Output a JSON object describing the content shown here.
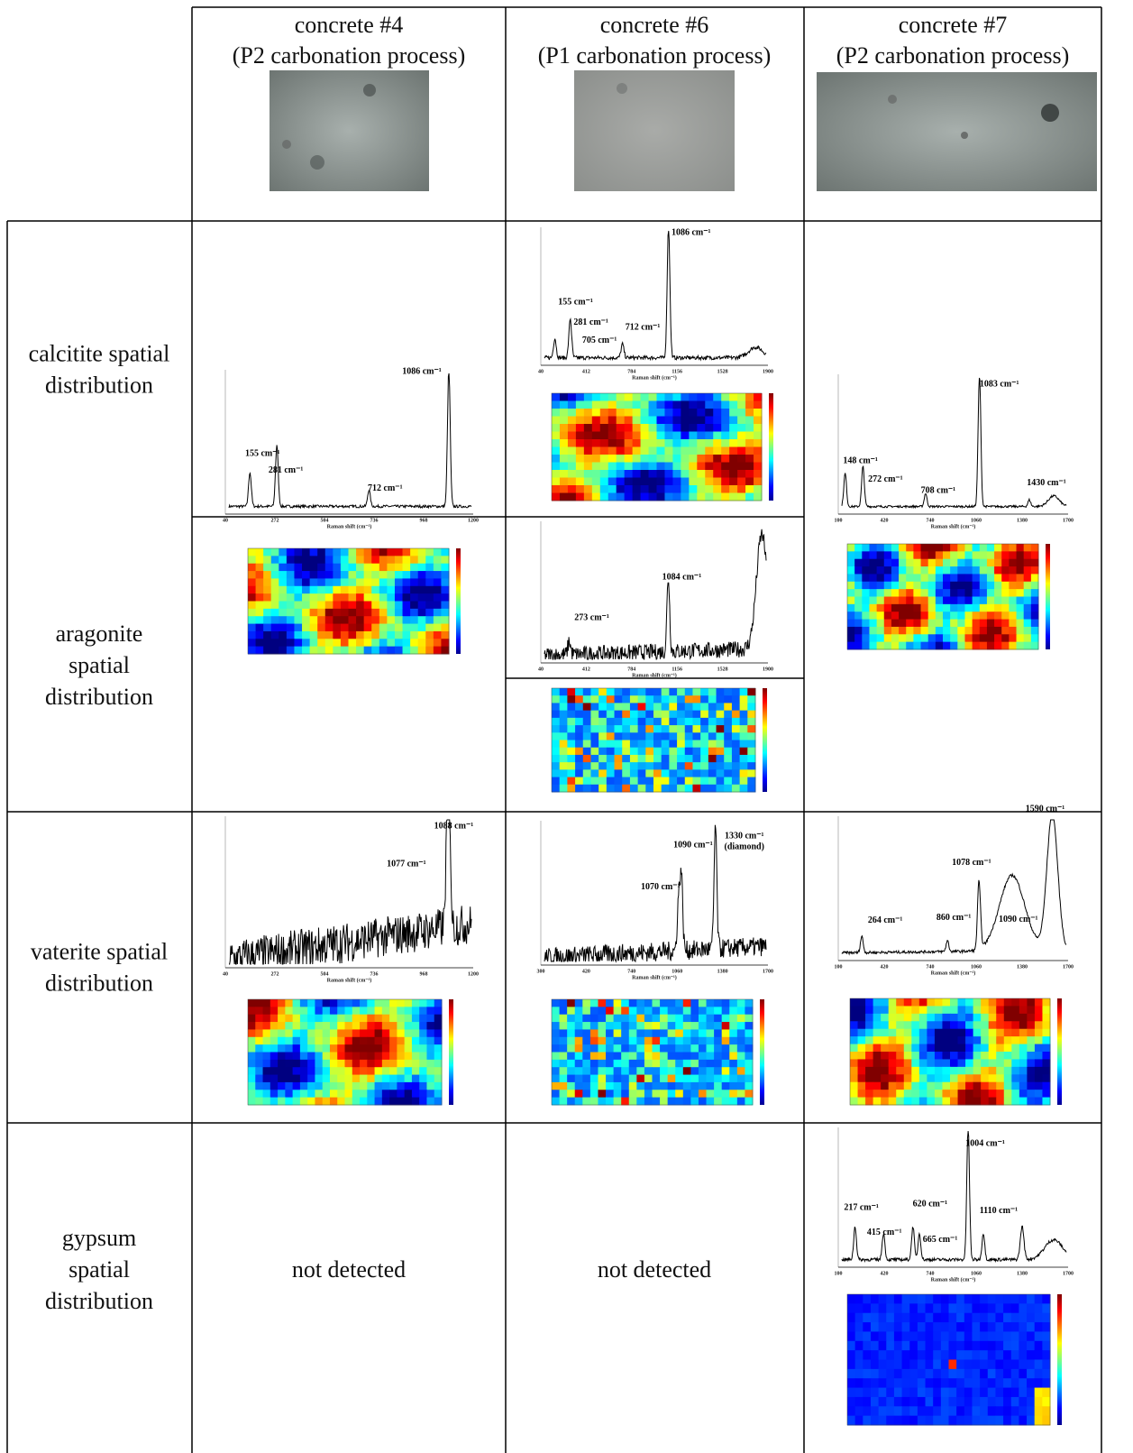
{
  "header": {
    "columns": [
      {
        "sample": "concrete #4",
        "process": "(P2 carbonation process)"
      },
      {
        "sample": "concrete #6",
        "process": "(P1 carbonation process)"
      },
      {
        "sample": "concrete #7",
        "process": "(P2 carbonation process)"
      }
    ]
  },
  "rows": [
    {
      "label_lines": [
        "calcitite spatial",
        "distribution"
      ]
    },
    {
      "label_lines": [
        "aragonite",
        "spatial",
        "distribution"
      ]
    },
    {
      "label_lines": [
        "vaterite spatial",
        "distribution"
      ]
    },
    {
      "label_lines": [
        "gypsum",
        "spatial",
        "distribution"
      ]
    }
  ],
  "gypsum_cells": [
    "not detected",
    "not detected"
  ],
  "spectra": [
    {
      "x_ticks": [
        40,
        272,
        504,
        736,
        968,
        1200
      ],
      "x_label": "Raman shift (cm⁻¹)",
      "peaks": [
        "155 cm⁻¹",
        "281 cm⁻¹",
        "712 cm⁻¹",
        "1086 cm⁻¹"
      ]
    },
    {
      "x_ticks": [
        40,
        412,
        784,
        1156,
        1528,
        1900
      ],
      "x_label": "Raman shift (cm⁻¹)",
      "peaks": [
        "155 cm⁻¹",
        "281 cm⁻¹",
        "705 cm⁻¹",
        "712 cm⁻¹",
        "1086 cm⁻¹"
      ]
    },
    {
      "x_ticks": [
        100,
        420,
        740,
        1060,
        1380,
        1700
      ],
      "x_label": "Raman shift (cm⁻¹)",
      "peaks": [
        "148 cm⁻¹",
        "272 cm⁻¹",
        "708 cm⁻¹",
        "1083 cm⁻¹",
        "1430 cm⁻¹"
      ]
    },
    {
      "x_ticks": [
        40,
        412,
        784,
        1156,
        1528,
        1900
      ],
      "x_label": "Raman shift (cm⁻¹)",
      "peaks": [
        "273 cm⁻¹",
        "1084 cm⁻¹"
      ]
    },
    {
      "x_ticks": [
        40,
        272,
        504,
        736,
        968,
        1200
      ],
      "x_label": "Raman shift (cm⁻¹)",
      "peaks": [
        "1077 cm⁻¹",
        "1088 cm⁻¹"
      ]
    },
    {
      "x_ticks": [
        300,
        420,
        740,
        1060,
        1380,
        1700
      ],
      "x_label": "Raman shift (cm⁻¹)",
      "peaks": [
        "1070 cm⁻¹",
        "1090 cm⁻¹",
        "1330 cm⁻¹"
      ],
      "note": "(diamond)"
    },
    {
      "x_ticks": [
        100,
        420,
        740,
        1060,
        1380,
        1700
      ],
      "x_label": "Raman shift (cm⁻¹)",
      "peaks": [
        "264 cm⁻¹",
        "860 cm⁻¹",
        "1078 cm⁻¹",
        "1090 cm⁻¹",
        "1590 cm⁻¹"
      ]
    },
    {
      "x_ticks": [
        100,
        420,
        740,
        1060,
        1380,
        1700
      ],
      "x_label": "Raman shift (cm⁻¹)",
      "peaks": [
        "217 cm⁻¹",
        "415 cm⁻¹",
        "620 cm⁻¹",
        "665 cm⁻¹",
        "1004 cm⁻¹",
        "1110 cm⁻¹"
      ]
    }
  ]
}
